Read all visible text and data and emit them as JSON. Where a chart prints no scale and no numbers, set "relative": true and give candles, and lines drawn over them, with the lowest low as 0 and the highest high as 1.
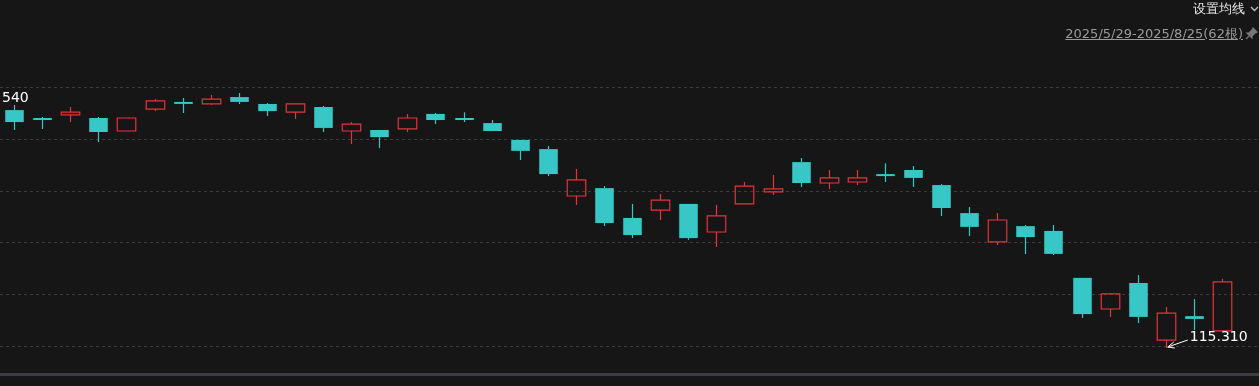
{
  "chart_data": {
    "type": "candlestick",
    "subtitle": "2025/5/29-2025/8/25(62根)",
    "relative": true,
    "grid": "y",
    "legend": false,
    "annotations": [
      "设置均线",
      "540",
      "115.310"
    ],
    "categories": [
      null,
      null,
      null,
      null,
      null,
      null,
      null,
      null,
      null,
      null,
      null,
      null,
      null,
      null,
      null,
      null,
      null,
      null,
      null,
      null,
      null,
      null,
      null,
      null,
      null,
      null,
      null,
      null,
      null,
      null,
      null,
      null,
      null,
      null,
      null,
      null,
      null,
      null,
      null,
      null,
      null,
      null,
      null,
      null
    ],
    "colors": [
      "#38c7c7",
      "#38c7c7",
      "#e8323c",
      "#38c7c7",
      "#e8323c",
      "#e8323c",
      "#38c7c7",
      "#e8323c",
      "#38c7c7",
      "#38c7c7",
      "#e8323c",
      "#38c7c7",
      "#e8323c",
      "#38c7c7",
      "#e8323c",
      "#38c7c7",
      "#38c7c7",
      "#38c7c7",
      "#38c7c7",
      "#38c7c7",
      "#e8323c",
      "#38c7c7",
      "#38c7c7",
      "#e8323c",
      "#38c7c7",
      "#e8323c",
      "#e8323c",
      "#e8323c",
      "#38c7c7",
      "#e8323c",
      "#e8323c",
      "#38c7c7",
      "#38c7c7",
      "#38c7c7",
      "#38c7c7",
      "#e8323c",
      "#38c7c7",
      "#38c7c7",
      "#38c7c7",
      "#e8323c",
      "#38c7c7",
      "#e8323c",
      "#38c7c7",
      "#e8323c"
    ],
    "ohlc": [
      [
        0.933,
        0.953,
        0.855,
        0.886
      ],
      [
        0.902,
        0.906,
        0.859,
        0.894
      ],
      [
        0.914,
        0.945,
        0.886,
        0.925
      ],
      [
        0.902,
        0.906,
        0.808,
        0.847
      ],
      [
        0.851,
        0.902,
        0.851,
        0.902
      ],
      [
        0.937,
        0.976,
        0.929,
        0.969
      ],
      [
        0.965,
        0.98,
        0.922,
        0.961
      ],
      [
        0.957,
        0.992,
        0.953,
        0.976
      ],
      [
        0.984,
        1,
        0.957,
        0.965
      ],
      [
        0.957,
        0.961,
        0.91,
        0.929
      ],
      [
        0.925,
        0.957,
        0.898,
        0.957
      ],
      [
        0.945,
        0.949,
        0.847,
        0.863
      ],
      [
        0.851,
        0.886,
        0.8,
        0.878
      ],
      [
        0.855,
        0.855,
        0.784,
        0.827
      ],
      [
        0.859,
        0.918,
        0.847,
        0.902
      ],
      [
        0.918,
        0.922,
        0.878,
        0.894
      ],
      [
        0.902,
        0.925,
        0.886,
        0.894
      ],
      [
        0.882,
        0.894,
        0.851,
        0.851
      ],
      [
        0.816,
        0.816,
        0.737,
        0.773
      ],
      [
        0.78,
        0.792,
        0.675,
        0.682
      ],
      [
        0.596,
        0.702,
        0.561,
        0.659
      ],
      [
        0.627,
        0.635,
        0.478,
        0.49
      ],
      [
        0.51,
        0.565,
        0.431,
        0.443
      ],
      [
        0.541,
        0.604,
        0.502,
        0.58
      ],
      [
        0.565,
        0.565,
        0.424,
        0.431
      ],
      [
        0.455,
        0.561,
        0.396,
        0.518
      ],
      [
        0.565,
        0.651,
        0.565,
        0.635
      ],
      [
        0.612,
        0.678,
        0.6,
        0.624
      ],
      [
        0.729,
        0.745,
        0.631,
        0.647
      ],
      [
        0.647,
        0.698,
        0.624,
        0.667
      ],
      [
        0.651,
        0.698,
        0.639,
        0.667
      ],
      [
        0.682,
        0.725,
        0.651,
        0.675
      ],
      [
        0.698,
        0.714,
        0.631,
        0.667
      ],
      [
        0.639,
        0.643,
        0.518,
        0.549
      ],
      [
        0.529,
        0.553,
        0.439,
        0.475
      ],
      [
        0.416,
        0.529,
        0.404,
        0.502
      ],
      [
        0.478,
        0.482,
        0.369,
        0.435
      ],
      [
        0.459,
        0.482,
        0.365,
        0.369
      ],
      [
        0.275,
        0.275,
        0.118,
        0.133
      ],
      [
        0.153,
        0.216,
        0.122,
        0.212
      ],
      [
        0.255,
        0.286,
        0.098,
        0.122
      ],
      [
        0.031,
        0.161,
        0,
        0.137
      ],
      [
        0.125,
        0.192,
        0.071,
        0.114
      ],
      [
        0.067,
        0.271,
        0.067,
        0.259
      ]
    ]
  }
}
